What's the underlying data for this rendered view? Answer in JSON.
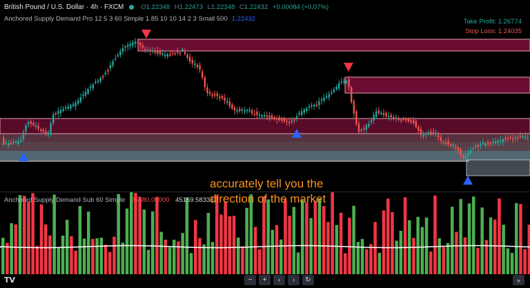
{
  "header": {
    "symbol": "British Pound / U.S. Dollar · 4h · FXCM",
    "ohlc": {
      "o_label": "O",
      "o_value": "1.22348",
      "h_label": "H",
      "h_value": "1.22473",
      "l_label": "L",
      "l_value": "1.22348",
      "c_label": "C",
      "c_value": "1.22432",
      "change": "+0.00084 (+0.07%)"
    },
    "indicator_name": "Anchored Supply Demand Pro 12 5 3 60 Simple 1.85 10 10 14 2 3 Small 500",
    "indicator_value": "1.22432",
    "take_profit": "Take Profit: 1.26774",
    "stop_loss": "Stop Loss: 1.24035"
  },
  "sub_indicator": {
    "name": "Anchored Supply Demand Sub 60 Simple",
    "value1": "25380.00000",
    "value2": "45159.58333"
  },
  "overlay_text": {
    "line1": "accurately tell you the",
    "line2": "direction of the market"
  },
  "toolbar": {
    "zoom_out": "−",
    "zoom_in": "+",
    "scroll_left": "‹",
    "scroll_right": "›",
    "reset": "↻",
    "go_to_latest": "»"
  },
  "logo": "TV",
  "colors": {
    "up": "#26a69a",
    "down": "#ef5350",
    "volume_up": "#4caf50",
    "volume_down": "#f23645",
    "supply_zone": "#c2185b",
    "demand_zone": "#b3e5fc",
    "buy_marker": "#2962ff",
    "sell_marker": "#f23645",
    "overlay_text": "#f7931a"
  },
  "chart_data": {
    "type": "candlestick",
    "signals": [
      {
        "type": "buy",
        "direction": "up"
      },
      {
        "type": "sell",
        "direction": "down"
      },
      {
        "type": "sell",
        "direction": "down"
      },
      {
        "type": "buy",
        "direction": "up"
      },
      {
        "type": "buy",
        "direction": "up"
      }
    ]
  }
}
